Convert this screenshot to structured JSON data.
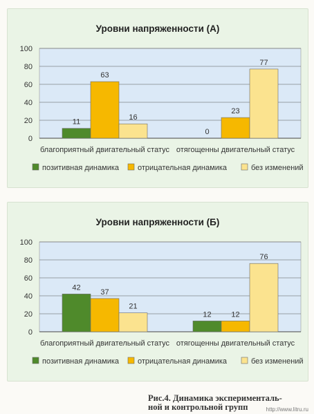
{
  "colors": {
    "positive": "#4f8a2b",
    "negative": "#f6b800",
    "unchanged": "#fbe38f",
    "plot_background": "#dbe9f7",
    "panel_background": "#eaf4e6"
  },
  "chart_data": [
    {
      "type": "bar",
      "title": "Уровни напряженности (А)",
      "categories": [
        "благоприятный двигательный статус",
        "отягощенны двигательный статус"
      ],
      "series": [
        {
          "name": "позитивная динамика",
          "values": [
            11,
            0
          ]
        },
        {
          "name": "отрицательная динамика",
          "values": [
            63,
            23
          ]
        },
        {
          "name": "без изменений",
          "values": [
            16,
            77
          ]
        }
      ],
      "y_ticks": [
        "0",
        "20",
        "40",
        "60",
        "80",
        "100"
      ],
      "ylim": [
        0,
        100
      ],
      "grid": true,
      "legend_position": "bottom",
      "data_labels": true
    },
    {
      "type": "bar",
      "title": "Уровни напряженности (Б)",
      "categories": [
        "благоприятный двигательный статус",
        "отягощенны двигательный статус"
      ],
      "series": [
        {
          "name": "позитивная динамика",
          "values": [
            42,
            12
          ]
        },
        {
          "name": "отрицательная динамика",
          "values": [
            37,
            12
          ]
        },
        {
          "name": "без изменений",
          "values": [
            21,
            76
          ]
        }
      ],
      "y_ticks": [
        "0",
        "20",
        "40",
        "60",
        "80",
        "100"
      ],
      "ylim": [
        0,
        100
      ],
      "grid": true,
      "legend_position": "bottom",
      "data_labels": true
    }
  ],
  "caption": {
    "line1": "Рис.4. Динамика эксперименталь-",
    "line2": "ной и контрольной групп"
  },
  "watermark": "http://www.litru.ru"
}
